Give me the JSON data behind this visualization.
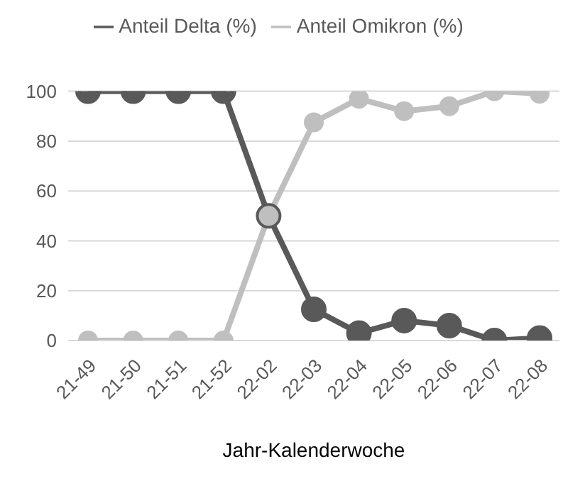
{
  "chart_data": {
    "type": "line",
    "xlabel": "Jahr-Kalenderwoche",
    "categories": [
      "21-49",
      "21-50",
      "21-51",
      "21-52",
      "22-02",
      "22-03",
      "22-04",
      "22-05",
      "22-06",
      "22-07",
      "22-08"
    ],
    "series": [
      {
        "name": "Anteil Delta (%)",
        "color": "#595959",
        "values": [
          100,
          100,
          100,
          100,
          50,
          12.5,
          3,
          8,
          6,
          0,
          1
        ]
      },
      {
        "name": "Anteil Omikron (%)",
        "color": "#bfbfbf",
        "values": [
          0,
          0,
          0,
          0,
          50,
          87.5,
          97,
          92,
          94,
          100,
          99
        ]
      }
    ],
    "ylim": [
      0,
      100
    ],
    "yticks": [
      0,
      20,
      40,
      60,
      80,
      100
    ],
    "grid": "y",
    "legend": "top",
    "marker": "circle"
  }
}
